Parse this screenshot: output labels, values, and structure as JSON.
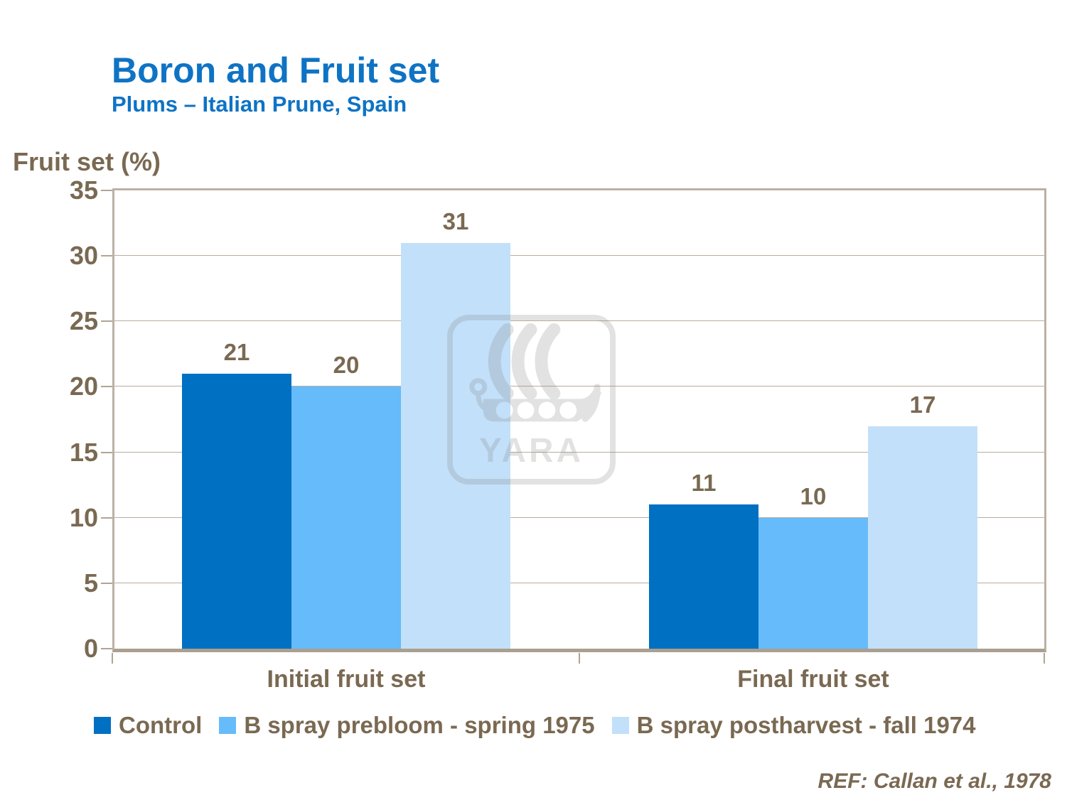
{
  "header": {
    "title": "Boron and Fruit set",
    "subtitle": "Plums – Italian Prune, Spain"
  },
  "axis_title": "Fruit set (%)",
  "footer": {
    "reference": "REF: Callan et al., 1978"
  },
  "watermark": {
    "icon": "yara-viking-ship-logo",
    "text": "YARA"
  },
  "colors": {
    "title_blue": "#0e73c4",
    "text_brown": "#7a6952",
    "plot_border": "#bcb1a5",
    "axis_line": "#ab9f90",
    "gridline": "#b9ad9f",
    "series_control": "#0070c2",
    "series_prebloom": "#66bbfa",
    "series_postharvest": "#c2e0f9"
  },
  "chart_data": {
    "type": "bar",
    "title": "Boron and Fruit set",
    "subtitle": "Plums – Italian Prune, Spain",
    "ylabel": "Fruit set (%)",
    "xlabel": "",
    "categories": [
      "Initial fruit set",
      "Final fruit set"
    ],
    "series": [
      {
        "name": "Control",
        "color": "#0070c2",
        "values": [
          21,
          11
        ]
      },
      {
        "name": "B spray prebloom - spring 1975",
        "color": "#66bbfa",
        "values": [
          20,
          10
        ]
      },
      {
        "name": "B spray postharvest - fall 1974",
        "color": "#c2e0f9",
        "values": [
          31,
          17
        ]
      }
    ],
    "ylim": [
      0,
      35
    ],
    "y_ticks": [
      0,
      5,
      10,
      15,
      20,
      25,
      30,
      35
    ],
    "grid": true,
    "value_labels": true,
    "legend_position": "bottom"
  }
}
